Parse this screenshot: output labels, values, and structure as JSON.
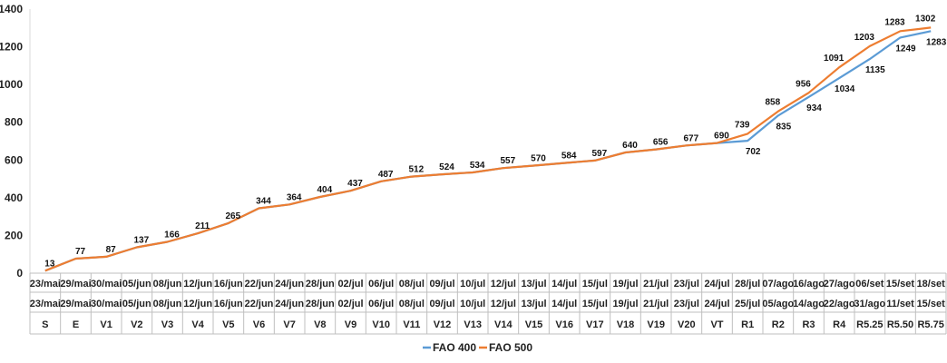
{
  "chart_data": {
    "type": "line",
    "categories_row1": [
      "23/mai",
      "29/mai",
      "30/mai",
      "05/jun",
      "08/jun",
      "12/jun",
      "16/jun",
      "22/jun",
      "24/jun",
      "28/jun",
      "02/jul",
      "06/jul",
      "08/jul",
      "09/jul",
      "10/jul",
      "12/jul",
      "13/jul",
      "14/jul",
      "15/jul",
      "19/jul",
      "21/jul",
      "23/jul",
      "24/jul",
      "28/jul",
      "07/ago",
      "16/ago",
      "27/ago",
      "06/set",
      "15/set",
      "18/set"
    ],
    "categories_row2": [
      "23/mai",
      "29/mai",
      "30/mai",
      "05/jun",
      "08/jun",
      "12/jun",
      "16/jun",
      "22/jun",
      "24/jun",
      "28/jun",
      "02/jul",
      "06/jul",
      "08/jul",
      "09/jul",
      "10/jul",
      "12/jul",
      "13/jul",
      "14/jul",
      "15/jul",
      "19/jul",
      "21/jul",
      "23/jul",
      "24/jul",
      "25/jul",
      "05/ago",
      "14/ago",
      "22/ago",
      "31/ago",
      "11/set",
      "15/set"
    ],
    "categories_row3": [
      "S",
      "E",
      "V1",
      "V2",
      "V3",
      "V4",
      "V5",
      "V6",
      "V7",
      "V8",
      "V9",
      "V10",
      "V11",
      "V12",
      "V13",
      "V14",
      "V15",
      "V16",
      "V17",
      "V18",
      "V19",
      "V20",
      "VT",
      "R1",
      "R2",
      "R3",
      "R4",
      "R5.25",
      "R5.50",
      "R5.75"
    ],
    "series": [
      {
        "name": "FAO 400",
        "color": "#5b9bd5",
        "values": [
          13,
          77,
          87,
          137,
          166,
          211,
          265,
          344,
          364,
          404,
          437,
          487,
          512,
          524,
          534,
          557,
          570,
          584,
          597,
          640,
          656,
          677,
          690,
          702,
          835,
          934,
          1034,
          1135,
          1249,
          1283
        ]
      },
      {
        "name": "FAO 500",
        "color": "#ed7d31",
        "values": [
          13,
          77,
          87,
          137,
          166,
          211,
          265,
          344,
          364,
          404,
          437,
          487,
          512,
          524,
          534,
          557,
          570,
          584,
          597,
          640,
          656,
          677,
          690,
          739,
          858,
          956,
          1091,
          1203,
          1283,
          1302
        ]
      }
    ],
    "ylim": [
      0,
      1400
    ],
    "yticks": [
      "0",
      "200",
      "400",
      "600",
      "800",
      "1000",
      "1200",
      "1400"
    ],
    "grid": false,
    "legend_position": "bottom",
    "data_labels_shared": [
      "13",
      "77",
      "87",
      "137",
      "166",
      "211",
      "265",
      "344",
      "364",
      "404",
      "437",
      "487",
      "512",
      "524",
      "534",
      "557",
      "570",
      "584",
      "597",
      "640",
      "656",
      "677",
      "690"
    ],
    "data_labels_fao400": [
      "702",
      "835",
      "934",
      "1034",
      "1135",
      "1249",
      "1283"
    ],
    "data_labels_fao500": [
      "739",
      "858",
      "956",
      "1091",
      "1203",
      "1283",
      "1302"
    ]
  }
}
